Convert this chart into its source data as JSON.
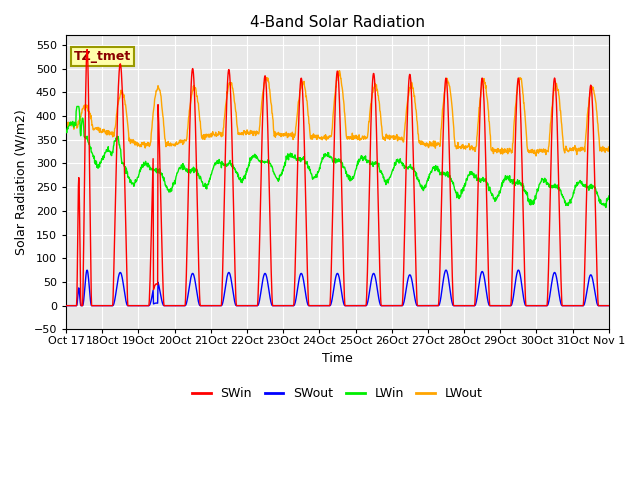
{
  "title": "4-Band Solar Radiation",
  "ylabel": "Solar Radiation (W/m2)",
  "xlabel": "Time",
  "annotation": "TZ_tmet",
  "ylim": [
    -50,
    570
  ],
  "yticks": [
    -50,
    0,
    50,
    100,
    150,
    200,
    250,
    300,
    350,
    400,
    450,
    500,
    550
  ],
  "start_day": 17,
  "end_day": 32,
  "total_days": 15,
  "dt_hours": 0.25,
  "swin_color": "#ff0000",
  "swout_color": "#0000ff",
  "lwin_color": "#00ee00",
  "lwout_color": "#ffa500",
  "bg_color": "#e8e8e8",
  "line_width": 1.0,
  "tick_label_size": 8,
  "title_size": 11,
  "legend_fontsize": 9,
  "figwidth": 6.4,
  "figheight": 4.8,
  "dpi": 100
}
